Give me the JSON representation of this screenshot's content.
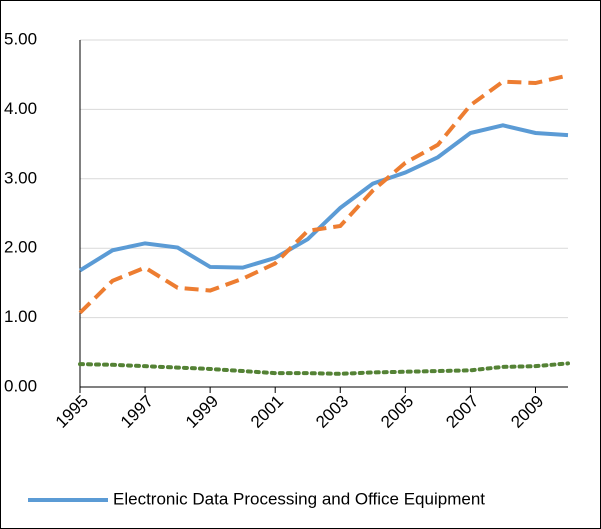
{
  "chart_data": {
    "type": "line",
    "x": [
      1995,
      1996,
      1997,
      1998,
      1999,
      2000,
      2001,
      2002,
      2003,
      2004,
      2005,
      2006,
      2007,
      2008,
      2009,
      2010
    ],
    "xlim": [
      1995,
      2010
    ],
    "xticks": [
      1995,
      1997,
      1999,
      2001,
      2003,
      2005,
      2007,
      2009
    ],
    "ylim": [
      0,
      5
    ],
    "yticks": [
      {
        "value": 0,
        "label": "0.00"
      },
      {
        "value": 1,
        "label": "1.00"
      },
      {
        "value": 2,
        "label": "2.00"
      },
      {
        "value": 3,
        "label": "3.00"
      },
      {
        "value": 4,
        "label": "4.00"
      },
      {
        "value": 5,
        "label": "5.00"
      }
    ],
    "grid": true,
    "series": [
      {
        "name": "Electronic Data Processing and Office Equipment",
        "color": "#5b9bd5",
        "style": "solid",
        "values": [
          1.68,
          1.97,
          2.07,
          2.01,
          1.73,
          1.72,
          1.86,
          2.13,
          2.58,
          2.93,
          3.09,
          3.31,
          3.66,
          3.77,
          3.66,
          3.63
        ]
      },
      {
        "color": "#ed7d31",
        "style": "dashed",
        "values": [
          1.07,
          1.53,
          1.72,
          1.43,
          1.39,
          1.56,
          1.78,
          2.25,
          2.32,
          2.83,
          3.23,
          3.49,
          4.06,
          4.4,
          4.38,
          4.49
        ]
      },
      {
        "color": "#548235",
        "style": "dotted",
        "values": [
          0.33,
          0.32,
          0.3,
          0.28,
          0.26,
          0.23,
          0.2,
          0.2,
          0.19,
          0.21,
          0.22,
          0.23,
          0.24,
          0.29,
          0.3,
          0.34
        ]
      }
    ]
  }
}
